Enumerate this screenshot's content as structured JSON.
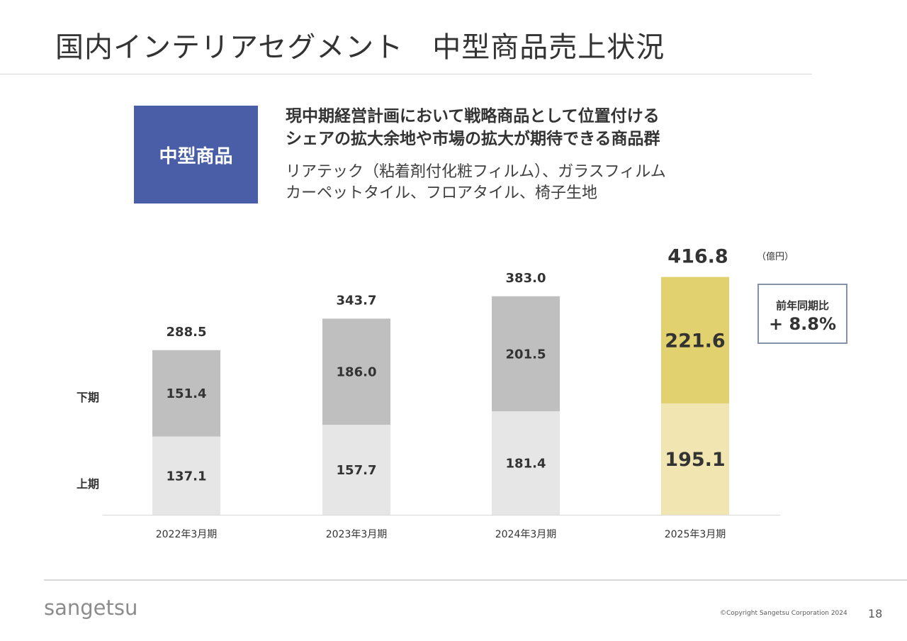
{
  "page": {
    "title": "国内インテリアセグメント　中型商品売上状況",
    "badge": "中型商品",
    "headline": [
      "現中期経営計画において戦略商品として位置付ける",
      "シェアの拡大余地や市場の拡大が期待できる商品群"
    ],
    "description": [
      "リアテック（粘着剤付化粧フィルム）、ガラスフィルム",
      "カーペットタイル、フロアタイル、椅子生地"
    ],
    "yoy": {
      "label": "前年同期比",
      "value": "+ 8.8%"
    },
    "footer": {
      "logo": "sangetsu",
      "copyright": "©Copyright Sangetsu Corporation 2024",
      "page_number": "18"
    }
  },
  "chart_data": {
    "type": "bar",
    "stacked": true,
    "unit": "（億円）",
    "categories": [
      "2022年3月期",
      "2023年3月期",
      "2024年3月期",
      "2025年3月期"
    ],
    "series": [
      {
        "name": "上期",
        "values": [
          137.1,
          157.7,
          181.4,
          195.1
        ],
        "labels": [
          "137.1",
          "157.7",
          "181.4",
          "195.1"
        ]
      },
      {
        "name": "下期",
        "values": [
          151.4,
          186.0,
          201.5,
          221.6
        ],
        "labels": [
          "151.4",
          "186.0",
          "201.5",
          "221.6"
        ]
      }
    ],
    "totals": [
      288.5,
      343.7,
      383.0,
      416.8
    ],
    "total_labels": [
      "288.5",
      "343.7",
      "383.0",
      "416.8"
    ],
    "highlight_index": 3,
    "colors": {
      "first_half": "#e6e6e6",
      "second_half": "#bfbfbf",
      "highlight_first_half": "#f1e6b1",
      "highlight_second_half": "#e1d26f",
      "axis": "#d9d9d9",
      "text": "#333333"
    },
    "legend_placement": "left",
    "grid": false
  }
}
